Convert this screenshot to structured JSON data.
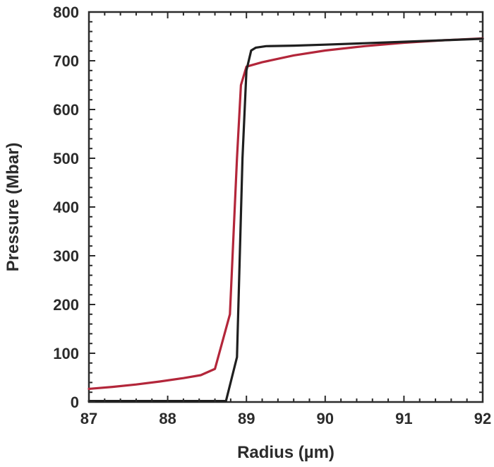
{
  "chart_data": {
    "type": "line",
    "title": "",
    "xlabel": "Radius (µm)",
    "ylabel": "Pressure (Mbar)",
    "xlim": [
      87,
      92
    ],
    "ylim": [
      0,
      800
    ],
    "xticks": [
      87,
      88,
      89,
      90,
      91,
      92
    ],
    "yticks": [
      0,
      100,
      200,
      300,
      400,
      500,
      600,
      700,
      800
    ],
    "grid": false,
    "legend": "none",
    "series": [
      {
        "color": "#b3263a",
        "points": [
          [
            87.0,
            27
          ],
          [
            87.3,
            31
          ],
          [
            87.6,
            36
          ],
          [
            87.9,
            42
          ],
          [
            88.2,
            49
          ],
          [
            88.42,
            55
          ],
          [
            88.6,
            68
          ],
          [
            88.79,
            180
          ],
          [
            88.88,
            500
          ],
          [
            88.93,
            650
          ],
          [
            89.0,
            688
          ],
          [
            89.2,
            697
          ],
          [
            89.6,
            711
          ],
          [
            90.0,
            721
          ],
          [
            90.5,
            730
          ],
          [
            91.0,
            737
          ],
          [
            91.5,
            742
          ],
          [
            92.0,
            746
          ]
        ]
      },
      {
        "color": "#1f1f1f",
        "points": [
          [
            87.0,
            2
          ],
          [
            87.5,
            2
          ],
          [
            88.0,
            2
          ],
          [
            88.5,
            2
          ],
          [
            88.74,
            2
          ],
          [
            88.88,
            92
          ],
          [
            88.95,
            500
          ],
          [
            89.0,
            680
          ],
          [
            89.06,
            721
          ],
          [
            89.12,
            727
          ],
          [
            89.25,
            730
          ],
          [
            89.6,
            731
          ],
          [
            90.0,
            733
          ],
          [
            90.5,
            736
          ],
          [
            91.0,
            739
          ],
          [
            91.5,
            742
          ],
          [
            92.0,
            745
          ]
        ]
      }
    ]
  }
}
